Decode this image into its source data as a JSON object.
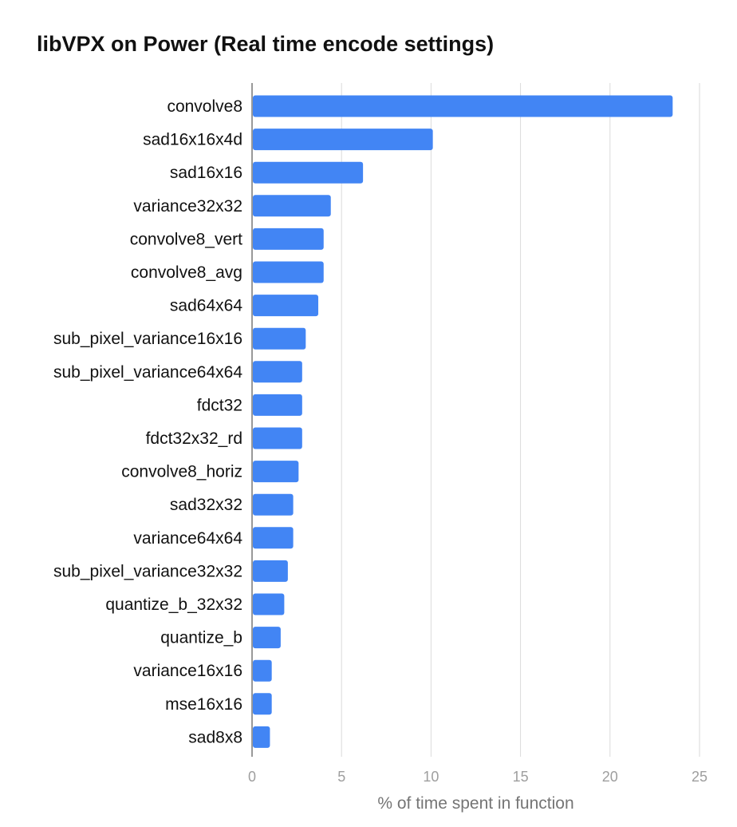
{
  "chart_data": {
    "type": "bar",
    "orientation": "horizontal",
    "title": "libVPX on Power (Real time encode settings)",
    "xlabel": "% of time spent in function",
    "ylabel": "",
    "xlim": [
      0,
      25
    ],
    "xticks": [
      0,
      5,
      10,
      15,
      20,
      25
    ],
    "grid": true,
    "legend": "none",
    "bar_color": "#4285f4",
    "categories": [
      "convolve8",
      "sad16x16x4d",
      "sad16x16",
      "variance32x32",
      "convolve8_vert",
      "convolve8_avg",
      "sad64x64",
      "sub_pixel_variance16x16",
      "sub_pixel_variance64x64",
      "fdct32",
      "fdct32x32_rd",
      "convolve8_horiz",
      "sad32x32",
      "variance64x64",
      "sub_pixel_variance32x32",
      "quantize_b_32x32",
      "quantize_b",
      "variance16x16",
      "mse16x16",
      "sad8x8"
    ],
    "values": [
      23.5,
      10.1,
      6.2,
      4.4,
      4.0,
      4.0,
      3.7,
      3.0,
      2.8,
      2.8,
      2.8,
      2.6,
      2.3,
      2.3,
      2.0,
      1.8,
      1.6,
      1.1,
      1.1,
      1.0
    ]
  }
}
